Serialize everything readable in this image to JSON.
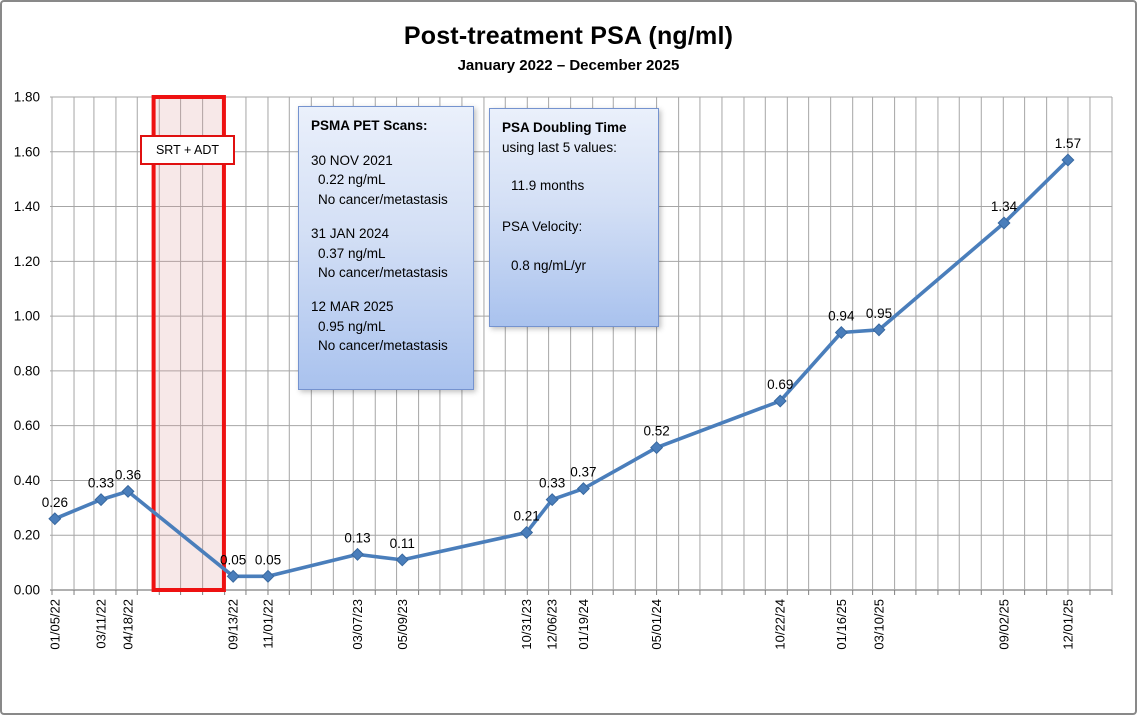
{
  "title": "Post-treatment PSA (ng/ml)",
  "subtitle": "January 2022 – December 2025",
  "colors": {
    "line": "#4a7ebb",
    "marker_edge": "#38689f",
    "grid": "#a6a6a6",
    "axis": "#808080",
    "region_fill": "rgba(217,151,149,0.22)",
    "region_border": "#ee1111",
    "box_border": "#7593cf",
    "text": "#000000"
  },
  "treatment_region": {
    "label": "SRT + ADT",
    "x_start": "05/24/22",
    "x_end": "08/31/22"
  },
  "psma_box": {
    "title": "PSMA PET Scans:",
    "scans": [
      {
        "date": "30 NOV 2021",
        "value": "0.22 ng/mL",
        "note": "No cancer/metastasis"
      },
      {
        "date": "31 JAN 2024",
        "value": "0.37 ng/mL",
        "note": "No cancer/metastasis"
      },
      {
        "date": "12 MAR 2025",
        "value": "0.95 ng/mL",
        "note": "No cancer/metastasis"
      }
    ]
  },
  "doubling_box": {
    "title": "PSA Doubling Time",
    "subtitle": "using last 5 values:",
    "value": "11.9 months",
    "velocity_label": "PSA Velocity:",
    "velocity_value": "0.8 ng/mL/yr"
  },
  "chart_data": {
    "type": "line",
    "title": "Post-treatment PSA (ng/ml)",
    "subtitle": "January 2022 – December 2025",
    "x": [
      "01/05/22",
      "03/11/22",
      "04/18/22",
      "09/13/22",
      "11/01/22",
      "03/07/23",
      "05/09/23",
      "10/31/23",
      "12/06/23",
      "01/19/24",
      "05/01/24",
      "10/22/24",
      "01/16/25",
      "03/10/25",
      "09/02/25",
      "12/01/25"
    ],
    "values": [
      0.26,
      0.33,
      0.36,
      0.05,
      0.05,
      0.13,
      0.11,
      0.21,
      0.33,
      0.37,
      0.52,
      0.69,
      0.94,
      0.95,
      1.34,
      1.57
    ],
    "ylim": [
      0,
      1.8
    ],
    "ytick_step": 0.2,
    "x_axis": {
      "start": "01/01/22",
      "end": "02/01/26",
      "gridline_interval": "monthly"
    },
    "grid": "on",
    "legend": "none",
    "marker": "diamond",
    "data_labels": "above",
    "shaded_region": {
      "label": "SRT + ADT",
      "x_start": "05/24/22",
      "x_end": "08/31/22"
    }
  }
}
